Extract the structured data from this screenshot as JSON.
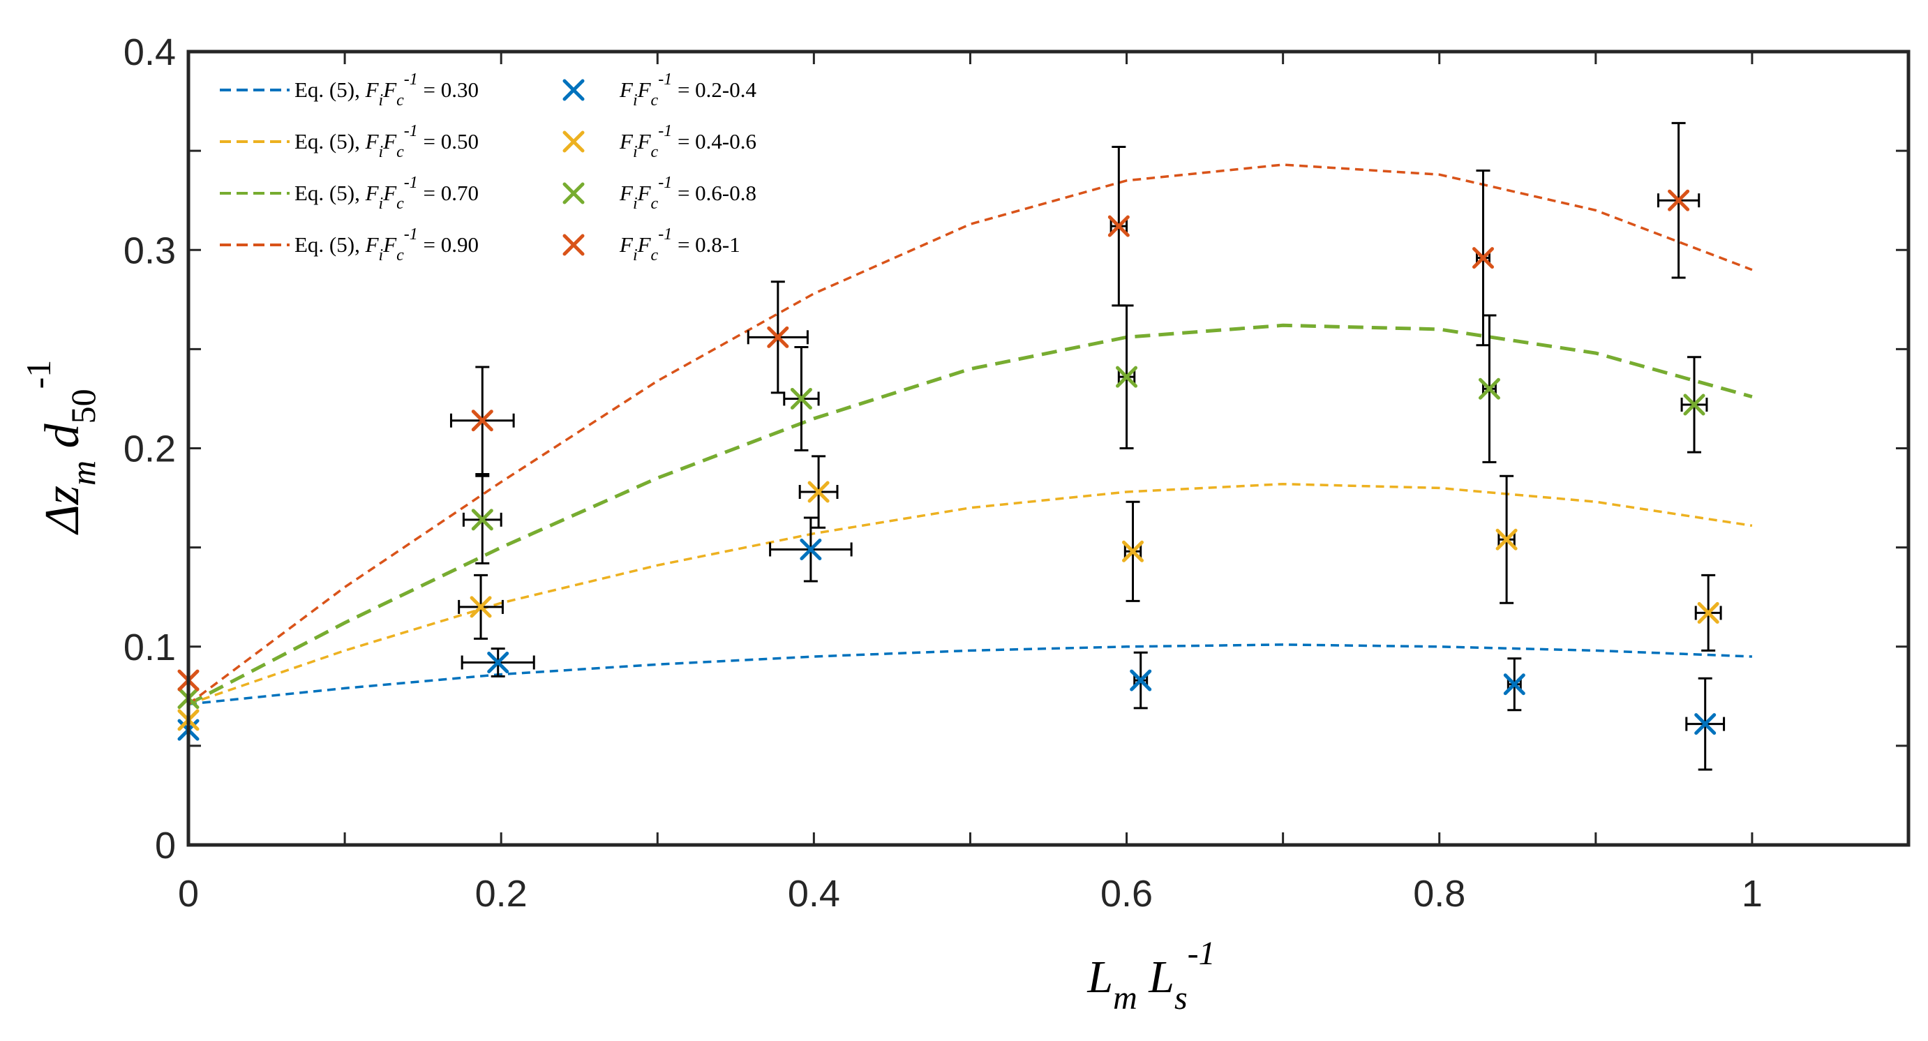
{
  "chart_data": {
    "type": "scatter",
    "title": "",
    "xlabel": {
      "main": "L",
      "sub1": "m",
      "mid": "L",
      "sub2": "s",
      "sup": "-1"
    },
    "ylabel": {
      "main": "Δz",
      "sub1": "m",
      "mid": "d",
      "sub2": "50",
      "sup": "-1"
    },
    "xlim": [
      0,
      1.1
    ],
    "ylim": [
      0,
      0.4
    ],
    "xticks": [
      0,
      0.2,
      0.4,
      0.6,
      0.8,
      1
    ],
    "xtick_labels": [
      "0",
      "0.2",
      "0.4",
      "0.6",
      "0.8",
      "1"
    ],
    "yticks": [
      0,
      0.1,
      0.2,
      0.3,
      0.4
    ],
    "ytick_labels": [
      "0",
      "0.1",
      "0.2",
      "0.3",
      "0.4"
    ],
    "legend_position": "top-left",
    "lines": [
      {
        "name": "Eq. (5), FiFc-1 = 0.30",
        "label": {
          "pre": "Eq. (5), ",
          "v1": "F",
          "s1": "i",
          "v2": "F",
          "s2": "c",
          "sup": "-1",
          "post": " = 0.30"
        },
        "color": "#0072BD",
        "x": [
          0,
          0.1,
          0.2,
          0.3,
          0.4,
          0.5,
          0.6,
          0.7,
          0.8,
          0.9,
          1.0
        ],
        "y": [
          0.071,
          0.079,
          0.086,
          0.091,
          0.095,
          0.098,
          0.1,
          0.101,
          0.1,
          0.098,
          0.095
        ]
      },
      {
        "name": "Eq. (5), FiFc-1 = 0.50",
        "label": {
          "pre": "Eq. (5), ",
          "v1": "F",
          "s1": "i",
          "v2": "F",
          "s2": "c",
          "sup": "-1",
          "post": " = 0.50"
        },
        "color": "#EDB120",
        "x": [
          0,
          0.1,
          0.2,
          0.3,
          0.4,
          0.5,
          0.6,
          0.7,
          0.8,
          0.9,
          1.0
        ],
        "y": [
          0.071,
          0.098,
          0.122,
          0.141,
          0.157,
          0.17,
          0.178,
          0.182,
          0.18,
          0.173,
          0.161
        ]
      },
      {
        "name": "Eq. (5), FiFc-1 = 0.70",
        "label": {
          "pre": "Eq. (5), ",
          "v1": "F",
          "s1": "i",
          "v2": "F",
          "s2": "c",
          "sup": "-1",
          "post": " = 0.70"
        },
        "color": "#77AC30",
        "x": [
          0,
          0.1,
          0.2,
          0.3,
          0.4,
          0.5,
          0.6,
          0.7,
          0.8,
          0.9,
          1.0
        ],
        "y": [
          0.071,
          0.112,
          0.15,
          0.185,
          0.215,
          0.24,
          0.256,
          0.262,
          0.26,
          0.248,
          0.226
        ]
      },
      {
        "name": "Eq. (5), FiFc-1 = 0.90",
        "label": {
          "pre": "Eq. (5), ",
          "v1": "F",
          "s1": "i",
          "v2": "F",
          "s2": "c",
          "sup": "-1",
          "post": " = 0.90"
        },
        "color": "#D95319",
        "x": [
          0,
          0.1,
          0.2,
          0.3,
          0.4,
          0.5,
          0.6,
          0.7,
          0.8,
          0.9,
          1.0
        ],
        "y": [
          0.071,
          0.13,
          0.183,
          0.234,
          0.278,
          0.313,
          0.335,
          0.343,
          0.338,
          0.32,
          0.29
        ]
      }
    ],
    "series": [
      {
        "name": "FiFc-1 = 0.2-0.4",
        "label": {
          "pre": "",
          "v1": "F",
          "s1": "i",
          "v2": "F",
          "s2": "c",
          "sup": "-1",
          "post": " = 0.2-0.4"
        },
        "color": "#0072BD",
        "points": [
          {
            "x": 0.0,
            "y": 0.058,
            "xerr": 0.0,
            "yerr": 0.0
          },
          {
            "x": 0.198,
            "y": 0.092,
            "xerr": 0.023,
            "yerr": 0.007
          },
          {
            "x": 0.398,
            "y": 0.149,
            "xerr": 0.026,
            "yerr": 0.016
          },
          {
            "x": 0.609,
            "y": 0.083,
            "xerr": 0.004,
            "yerr": 0.014
          },
          {
            "x": 0.848,
            "y": 0.081,
            "xerr": 0.004,
            "yerr": 0.013
          },
          {
            "x": 0.97,
            "y": 0.061,
            "xerr": 0.012,
            "yerr": 0.023
          }
        ]
      },
      {
        "name": "FiFc-1 = 0.4-0.6",
        "label": {
          "pre": "",
          "v1": "F",
          "s1": "i",
          "v2": "F",
          "s2": "c",
          "sup": "-1",
          "post": " = 0.4-0.6"
        },
        "color": "#EDB120",
        "points": [
          {
            "x": 0.0,
            "y": 0.063,
            "xerr": 0.0,
            "yerr": 0.0
          },
          {
            "x": 0.187,
            "y": 0.12,
            "xerr": 0.014,
            "yerr": 0.016
          },
          {
            "x": 0.403,
            "y": 0.178,
            "xerr": 0.012,
            "yerr": 0.018
          },
          {
            "x": 0.604,
            "y": 0.148,
            "xerr": 0.005,
            "yerr": 0.025
          },
          {
            "x": 0.843,
            "y": 0.154,
            "xerr": 0.005,
            "yerr": 0.032
          },
          {
            "x": 0.972,
            "y": 0.117,
            "xerr": 0.008,
            "yerr": 0.019
          }
        ]
      },
      {
        "name": "FiFc-1 = 0.6-0.8",
        "label": {
          "pre": "",
          "v1": "F",
          "s1": "i",
          "v2": "F",
          "s2": "c",
          "sup": "-1",
          "post": " = 0.6-0.8"
        },
        "color": "#77AC30",
        "points": [
          {
            "x": 0.0,
            "y": 0.074,
            "xerr": 0.0,
            "yerr": 0.0
          },
          {
            "x": 0.188,
            "y": 0.164,
            "xerr": 0.012,
            "yerr": 0.022
          },
          {
            "x": 0.392,
            "y": 0.225,
            "xerr": 0.011,
            "yerr": 0.026
          },
          {
            "x": 0.6,
            "y": 0.236,
            "xerr": 0.005,
            "yerr": 0.036
          },
          {
            "x": 0.832,
            "y": 0.23,
            "xerr": 0.004,
            "yerr": 0.037
          },
          {
            "x": 0.963,
            "y": 0.222,
            "xerr": 0.008,
            "yerr": 0.024
          }
        ]
      },
      {
        "name": "FiFc-1 = 0.8-1",
        "label": {
          "pre": "",
          "v1": "F",
          "s1": "i",
          "v2": "F",
          "s2": "c",
          "sup": "-1",
          "post": " = 0.8-1"
        },
        "color": "#D95319",
        "points": [
          {
            "x": 0.0,
            "y": 0.083,
            "xerr": 0.0,
            "yerr": 0.0
          },
          {
            "x": 0.188,
            "y": 0.214,
            "xerr": 0.02,
            "yerr": 0.027
          },
          {
            "x": 0.377,
            "y": 0.256,
            "xerr": 0.019,
            "yerr": 0.028
          },
          {
            "x": 0.595,
            "y": 0.312,
            "xerr": 0.005,
            "yerr": 0.04
          },
          {
            "x": 0.828,
            "y": 0.296,
            "xerr": 0.004,
            "yerr": 0.044
          },
          {
            "x": 0.953,
            "y": 0.325,
            "xerr": 0.013,
            "yerr": 0.039
          }
        ]
      }
    ]
  }
}
